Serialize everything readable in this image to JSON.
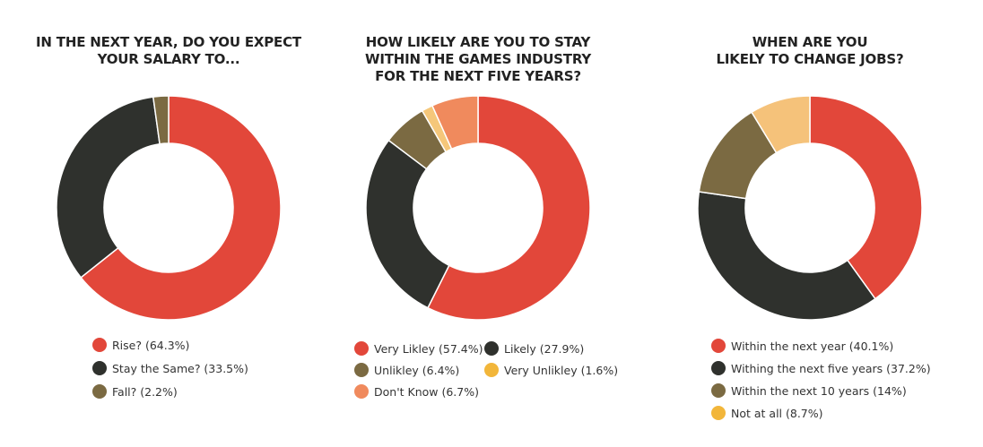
{
  "chart_data": [
    {
      "type": "pie",
      "donut": true,
      "title": "IN THE NEXT YEAR, DO YOU EXPECT\nYOUR SALARY TO...",
      "categories": [
        "Rise?",
        "Stay the Same?",
        "Fall?"
      ],
      "values": [
        64.3,
        33.5,
        2.2
      ],
      "labels": [
        "Rise? (64.3%)",
        "Stay the Same? (33.5%)",
        "Fall? (2.2%)"
      ],
      "colors": [
        "#e2473a",
        "#2f312d",
        "#7b6a42"
      ],
      "legend": "bottom"
    },
    {
      "type": "pie",
      "donut": true,
      "title": "HOW LIKELY ARE YOU TO STAY\nWITHIN THE GAMES INDUSTRY\nFOR THE NEXT FIVE YEARS?",
      "categories": [
        "Very Likley",
        "Likely",
        "Unlikley",
        "Very Unlikley",
        "Don't Know"
      ],
      "values": [
        57.4,
        27.9,
        6.4,
        1.6,
        6.7
      ],
      "labels": [
        "Very Likley (57.4%)",
        "Likely (27.9%)",
        "Unlikley (6.4%)",
        "Very Unlikley (1.6%)",
        "Don't Know (6.7%)"
      ],
      "colors": [
        "#e2473a",
        "#2f312d",
        "#7b6a42",
        "#f5c77a",
        "#f08a5d"
      ],
      "legend_colors": [
        "#e2473a",
        "#2f312d",
        "#7b6a42",
        "#f2b63a",
        "#f08a5d"
      ],
      "legend": "bottom"
    },
    {
      "type": "pie",
      "donut": true,
      "title": "WHEN ARE YOU\nLIKELY TO CHANGE JOBS?",
      "categories": [
        "Within the next year",
        "Withing the next five years",
        "Within the next 10 years",
        "Not at all"
      ],
      "values": [
        40.1,
        37.2,
        14,
        8.7
      ],
      "labels": [
        "Within the next year (40.1%)",
        "Withing the next five years (37.2%)",
        "Within the next 10 years (14%)",
        "Not at all (8.7%)"
      ],
      "colors": [
        "#e2473a",
        "#2f312d",
        "#7b6a42",
        "#f5c27a"
      ],
      "legend_colors": [
        "#e2473a",
        "#2f312d",
        "#7b6a42",
        "#f2b63a"
      ],
      "legend": "bottom"
    }
  ]
}
